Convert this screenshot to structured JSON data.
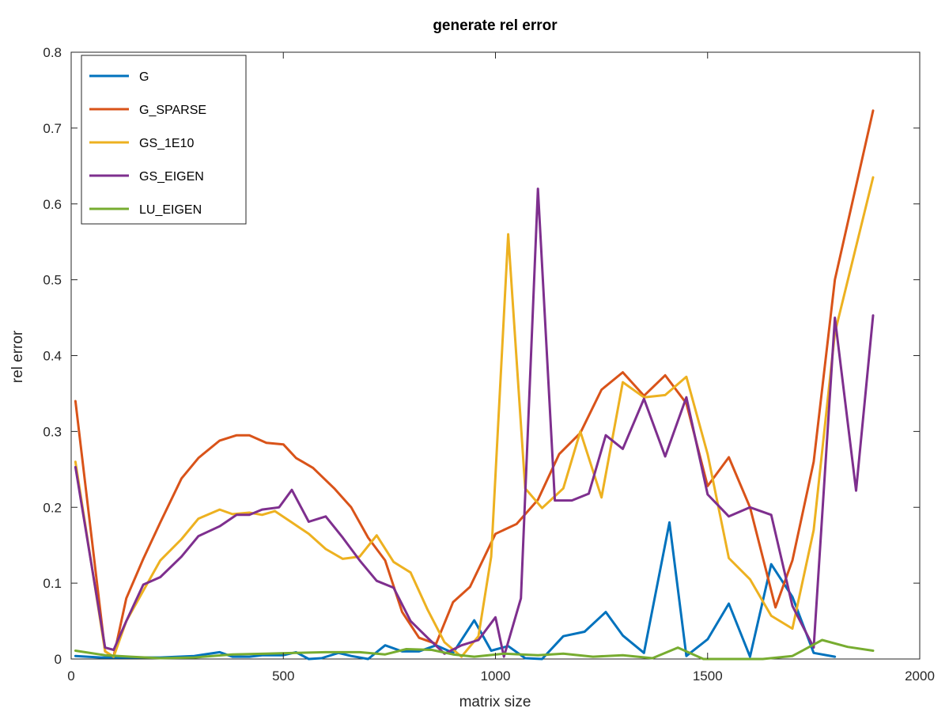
{
  "chart_data": {
    "type": "line",
    "title": "generate rel error",
    "xlabel": "matrix size",
    "ylabel": "rel error",
    "xlim": [
      0,
      2000
    ],
    "ylim": [
      0,
      0.8
    ],
    "xticks": [
      0,
      500,
      1000,
      1500,
      2000
    ],
    "yticks": [
      0,
      0.1,
      0.2,
      0.3,
      0.4,
      0.5,
      0.6,
      0.7,
      0.8
    ],
    "grid": false,
    "legend_position": "top-left",
    "x": [
      10,
      50,
      90,
      130,
      170,
      210,
      250,
      290,
      330,
      370,
      410,
      450,
      490,
      530,
      570,
      610,
      650,
      690,
      730,
      770,
      810,
      850,
      890,
      930,
      970,
      1010,
      1050,
      1090,
      1130,
      1170,
      1210,
      1250,
      1290,
      1330,
      1370,
      1410,
      1450,
      1490,
      1530,
      1570,
      1610,
      1650,
      1690,
      1730,
      1770,
      1810,
      1850,
      1890
    ],
    "series": [
      {
        "name": "G",
        "color": "#0072BD",
        "points": [
          [
            10,
            0.004
          ],
          [
            70,
            0.002
          ],
          [
            130,
            0.002
          ],
          [
            210,
            0.002
          ],
          [
            290,
            0.004
          ],
          [
            350,
            0.009
          ],
          [
            380,
            0.003
          ],
          [
            420,
            0.003
          ],
          [
            450,
            0.005
          ],
          [
            500,
            0.005
          ],
          [
            530,
            0.009
          ],
          [
            560,
            0.0
          ],
          [
            590,
            0.001
          ],
          [
            630,
            0.008
          ],
          [
            660,
            0.004
          ],
          [
            700,
            0.0
          ],
          [
            740,
            0.018
          ],
          [
            780,
            0.01
          ],
          [
            820,
            0.01
          ],
          [
            860,
            0.018
          ],
          [
            900,
            0.008
          ],
          [
            950,
            0.051
          ],
          [
            990,
            0.011
          ],
          [
            1030,
            0.017
          ],
          [
            1070,
            0.001
          ],
          [
            1110,
            0.0
          ],
          [
            1160,
            0.03
          ],
          [
            1210,
            0.036
          ],
          [
            1260,
            0.062
          ],
          [
            1300,
            0.031
          ],
          [
            1350,
            0.008
          ],
          [
            1410,
            0.18
          ],
          [
            1450,
            0.004
          ],
          [
            1500,
            0.026
          ],
          [
            1550,
            0.073
          ],
          [
            1600,
            0.003
          ],
          [
            1650,
            0.125
          ],
          [
            1700,
            0.082
          ],
          [
            1750,
            0.008
          ],
          [
            1800,
            0.003
          ]
        ]
      },
      {
        "name": "G_SPARSE",
        "color": "#D95319",
        "points": [
          [
            10,
            0.34
          ],
          [
            80,
            0.01
          ],
          [
            100,
            0.003
          ],
          [
            130,
            0.08
          ],
          [
            170,
            0.132
          ],
          [
            210,
            0.18
          ],
          [
            260,
            0.238
          ],
          [
            300,
            0.265
          ],
          [
            350,
            0.288
          ],
          [
            390,
            0.295
          ],
          [
            420,
            0.295
          ],
          [
            460,
            0.285
          ],
          [
            500,
            0.283
          ],
          [
            530,
            0.265
          ],
          [
            570,
            0.252
          ],
          [
            620,
            0.225
          ],
          [
            660,
            0.2
          ],
          [
            700,
            0.16
          ],
          [
            740,
            0.13
          ],
          [
            780,
            0.062
          ],
          [
            820,
            0.028
          ],
          [
            860,
            0.02
          ],
          [
            900,
            0.075
          ],
          [
            940,
            0.095
          ],
          [
            1000,
            0.165
          ],
          [
            1050,
            0.178
          ],
          [
            1100,
            0.21
          ],
          [
            1150,
            0.27
          ],
          [
            1200,
            0.298
          ],
          [
            1250,
            0.355
          ],
          [
            1300,
            0.378
          ],
          [
            1350,
            0.347
          ],
          [
            1400,
            0.374
          ],
          [
            1450,
            0.337
          ],
          [
            1500,
            0.228
          ],
          [
            1550,
            0.266
          ],
          [
            1600,
            0.2
          ],
          [
            1660,
            0.068
          ],
          [
            1700,
            0.13
          ],
          [
            1750,
            0.26
          ],
          [
            1800,
            0.5
          ],
          [
            1890,
            0.723
          ]
        ]
      },
      {
        "name": "GS_1E10",
        "color": "#EDB120",
        "points": [
          [
            10,
            0.26
          ],
          [
            80,
            0.01
          ],
          [
            100,
            0.003
          ],
          [
            130,
            0.05
          ],
          [
            170,
            0.09
          ],
          [
            210,
            0.13
          ],
          [
            260,
            0.158
          ],
          [
            300,
            0.185
          ],
          [
            350,
            0.197
          ],
          [
            380,
            0.191
          ],
          [
            420,
            0.193
          ],
          [
            450,
            0.19
          ],
          [
            480,
            0.195
          ],
          [
            520,
            0.18
          ],
          [
            560,
            0.165
          ],
          [
            600,
            0.145
          ],
          [
            640,
            0.132
          ],
          [
            680,
            0.135
          ],
          [
            720,
            0.163
          ],
          [
            760,
            0.128
          ],
          [
            800,
            0.114
          ],
          [
            840,
            0.065
          ],
          [
            880,
            0.022
          ],
          [
            920,
            0.003
          ],
          [
            960,
            0.03
          ],
          [
            990,
            0.135
          ],
          [
            1030,
            0.56
          ],
          [
            1070,
            0.225
          ],
          [
            1110,
            0.199
          ],
          [
            1160,
            0.225
          ],
          [
            1200,
            0.3
          ],
          [
            1250,
            0.213
          ],
          [
            1300,
            0.365
          ],
          [
            1350,
            0.345
          ],
          [
            1400,
            0.348
          ],
          [
            1450,
            0.372
          ],
          [
            1500,
            0.27
          ],
          [
            1550,
            0.133
          ],
          [
            1600,
            0.105
          ],
          [
            1650,
            0.057
          ],
          [
            1700,
            0.04
          ],
          [
            1750,
            0.17
          ],
          [
            1800,
            0.43
          ],
          [
            1890,
            0.635
          ]
        ]
      },
      {
        "name": "GS_EIGEN",
        "color": "#7E2F8E",
        "points": [
          [
            10,
            0.253
          ],
          [
            80,
            0.015
          ],
          [
            100,
            0.012
          ],
          [
            130,
            0.05
          ],
          [
            170,
            0.098
          ],
          [
            210,
            0.108
          ],
          [
            260,
            0.135
          ],
          [
            300,
            0.162
          ],
          [
            350,
            0.175
          ],
          [
            390,
            0.19
          ],
          [
            420,
            0.19
          ],
          [
            450,
            0.197
          ],
          [
            490,
            0.2
          ],
          [
            520,
            0.223
          ],
          [
            560,
            0.181
          ],
          [
            600,
            0.188
          ],
          [
            640,
            0.16
          ],
          [
            680,
            0.13
          ],
          [
            720,
            0.103
          ],
          [
            760,
            0.094
          ],
          [
            800,
            0.05
          ],
          [
            840,
            0.028
          ],
          [
            880,
            0.007
          ],
          [
            920,
            0.018
          ],
          [
            960,
            0.025
          ],
          [
            1000,
            0.055
          ],
          [
            1020,
            0.003
          ],
          [
            1060,
            0.08
          ],
          [
            1100,
            0.62
          ],
          [
            1140,
            0.209
          ],
          [
            1180,
            0.209
          ],
          [
            1220,
            0.218
          ],
          [
            1260,
            0.295
          ],
          [
            1300,
            0.277
          ],
          [
            1350,
            0.343
          ],
          [
            1400,
            0.267
          ],
          [
            1450,
            0.345
          ],
          [
            1500,
            0.217
          ],
          [
            1550,
            0.188
          ],
          [
            1600,
            0.2
          ],
          [
            1650,
            0.19
          ],
          [
            1700,
            0.07
          ],
          [
            1750,
            0.015
          ],
          [
            1800,
            0.45
          ],
          [
            1850,
            0.222
          ],
          [
            1890,
            0.453
          ]
        ]
      },
      {
        "name": "LU_EIGEN",
        "color": "#77AC30",
        "points": [
          [
            10,
            0.011
          ],
          [
            80,
            0.005
          ],
          [
            140,
            0.003
          ],
          [
            210,
            0.001
          ],
          [
            290,
            0.002
          ],
          [
            380,
            0.006
          ],
          [
            460,
            0.007
          ],
          [
            530,
            0.008
          ],
          [
            600,
            0.009
          ],
          [
            680,
            0.009
          ],
          [
            740,
            0.006
          ],
          [
            790,
            0.013
          ],
          [
            850,
            0.012
          ],
          [
            900,
            0.006
          ],
          [
            950,
            0.003
          ],
          [
            1020,
            0.007
          ],
          [
            1100,
            0.005
          ],
          [
            1160,
            0.007
          ],
          [
            1230,
            0.003
          ],
          [
            1300,
            0.005
          ],
          [
            1370,
            0.001
          ],
          [
            1430,
            0.015
          ],
          [
            1490,
            0.0
          ],
          [
            1560,
            0.0
          ],
          [
            1630,
            0.0
          ],
          [
            1700,
            0.004
          ],
          [
            1770,
            0.025
          ],
          [
            1830,
            0.016
          ],
          [
            1890,
            0.011
          ]
        ]
      }
    ]
  }
}
